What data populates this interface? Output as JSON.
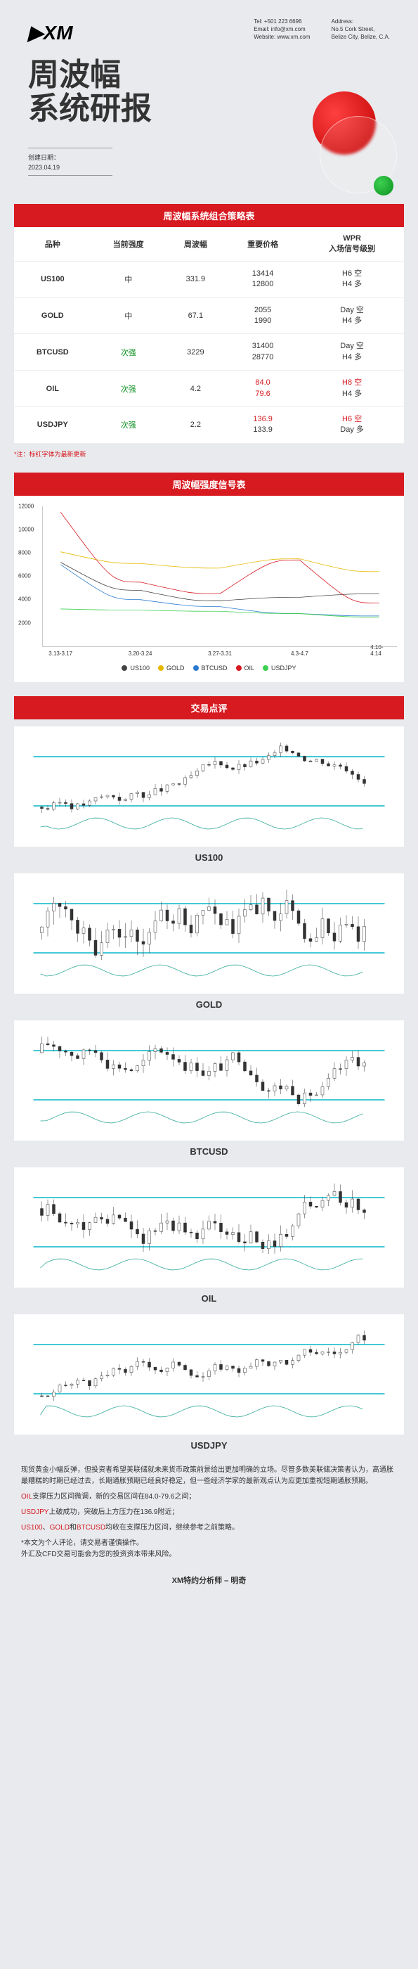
{
  "logo": "XM",
  "contact": {
    "tel": "Tel: +501 223 6696",
    "email": "Email: info@xm.com",
    "website": "Website: www.xm.com",
    "addr_label": "Address:",
    "addr_1": "No.5 Cork Street,",
    "addr_2": "Belize City, Belize, C.A."
  },
  "title_line1": "周波幅",
  "title_line2": "系统研报",
  "date_label": "创建日期：",
  "date_value": "2023.04.19",
  "tables": {
    "strategy_title": "周波幅系统组合策略表",
    "headers": [
      "品种",
      "当前强度",
      "周波幅",
      "重要价格",
      "WPR\n入场信号级别"
    ],
    "rows": [
      {
        "symbol": "US100",
        "strength": "中",
        "range": "331.9",
        "prices": [
          "13414",
          "12800"
        ],
        "signals": [
          "H6 空",
          "H4 多"
        ],
        "redPrices": [
          false,
          false
        ],
        "redSignals": [
          false,
          false
        ],
        "greenStrength": false
      },
      {
        "symbol": "GOLD",
        "strength": "中",
        "range": "67.1",
        "prices": [
          "2055",
          "1990"
        ],
        "signals": [
          "Day 空",
          "H4 多"
        ],
        "redPrices": [
          false,
          false
        ],
        "redSignals": [
          false,
          false
        ],
        "greenStrength": false
      },
      {
        "symbol": "BTCUSD",
        "strength": "次强",
        "range": "3229",
        "prices": [
          "31400",
          "28770"
        ],
        "signals": [
          "Day 空",
          "H4 多"
        ],
        "redPrices": [
          false,
          false
        ],
        "redSignals": [
          false,
          false
        ],
        "greenStrength": true
      },
      {
        "symbol": "OIL",
        "strength": "次强",
        "range": "4.2",
        "prices": [
          "84.0",
          "79.6"
        ],
        "signals": [
          "H8 空",
          "H4 多"
        ],
        "redPrices": [
          true,
          true
        ],
        "redSignals": [
          true,
          false
        ],
        "greenStrength": true
      },
      {
        "symbol": "USDJPY",
        "strength": "次强",
        "range": "2.2",
        "prices": [
          "136.9",
          "133.9"
        ],
        "signals": [
          "H6 空",
          "Day 多"
        ],
        "redPrices": [
          true,
          false
        ],
        "redSignals": [
          true,
          false
        ],
        "greenStrength": true
      }
    ],
    "note": "*注：标红字体为最新更新"
  },
  "signal_table_title": "周波幅强度信号表",
  "line_chart": {
    "y_ticks": [
      2000,
      4000,
      6000,
      8000,
      10000,
      12000
    ],
    "y_max": 12000,
    "x_labels": [
      "3.13-3.17",
      "3.20-3.24",
      "3.27-3.31",
      "4.3-4.7",
      "4.10-4.14"
    ],
    "series": [
      {
        "name": "US100",
        "color": "#444",
        "data": [
          7200,
          4800,
          3900,
          4200,
          4500
        ]
      },
      {
        "name": "GOLD",
        "color": "#e6b800",
        "data": [
          8100,
          7100,
          6700,
          7500,
          6400
        ]
      },
      {
        "name": "BTCUSD",
        "color": "#2b7cd0",
        "data": [
          7000,
          4000,
          3400,
          2800,
          2600
        ]
      },
      {
        "name": "OIL",
        "color": "#d71920",
        "data": [
          11500,
          5500,
          4500,
          7400,
          3700
        ]
      },
      {
        "name": "USDJPY",
        "color": "#3dd050",
        "data": [
          3200,
          3100,
          3000,
          2800,
          2500
        ]
      }
    ]
  },
  "review_title": "交易点评",
  "candle_charts": [
    {
      "label": "US100",
      "color_lines": "#45c8d6"
    },
    {
      "label": "GOLD",
      "color_lines": "#45c8d6"
    },
    {
      "label": "BTCUSD",
      "color_lines": "#45c8d6"
    },
    {
      "label": "OIL",
      "color_lines": "#45c8d6"
    },
    {
      "label": "USDJPY",
      "color_lines": "#45c8d6"
    }
  ],
  "commentary": [
    {
      "text": "现货黄金小幅反弹，但投资者希望美联储就未来货币政策前景给出更加明确的立场。尽管多数美联储决策者认为，高通胀最糟糕的时期已经过去，长期通胀预期已经良好稳定，但一些经济学家的最新观点认为应更加重视短期通胀预期。",
      "red": false
    },
    {
      "text": "OIL支撑压力区间微调，新的交易区间在84.0-79.6之间；",
      "red": true,
      "symbol": "OIL"
    },
    {
      "text": "USDJPY上破成功，突破后上方压力在136.9附近；",
      "red": true,
      "symbol": "USDJPY"
    },
    {
      "text": "US100、GOLD和BTCUSD均收在支撑压力区间，继续参考之前策略。",
      "red": true,
      "symbols": [
        "US100",
        "GOLD",
        "BTCUSD"
      ]
    },
    {
      "text": "*本文为个人评论，请交易者谨慎操作。\n外汇及CFD交易可能会为您的投资资本带来风险。",
      "red": false
    }
  ],
  "author": "XM特约分析师 – 明奇"
}
